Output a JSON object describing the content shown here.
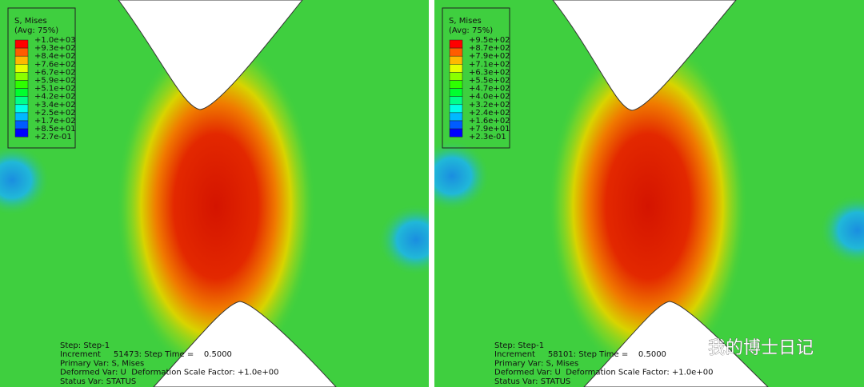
{
  "panels": [
    {
      "legend": {
        "title": "S, Mises",
        "subtitle": "(Avg: 75%)",
        "labels": [
          "+1.0e+03",
          "+9.3e+02",
          "+8.4e+02",
          "+7.6e+02",
          "+6.7e+02",
          "+5.9e+02",
          "+5.1e+02",
          "+4.2e+02",
          "+3.4e+02",
          "+2.5e+02",
          "+1.7e+02",
          "+8.5e+01",
          "+2.7e-01"
        ]
      },
      "status": [
        "Step: Step-1",
        "Increment     51473: Step Time =    0.5000",
        "Primary Var: S, Mises",
        "Deformed Var: U  Deformation Scale Factor: +1.0e+00",
        "Status Var: STATUS"
      ]
    },
    {
      "legend": {
        "title": "S, Mises",
        "subtitle": "(Avg: 75%)",
        "labels": [
          "+9.5e+02",
          "+8.7e+02",
          "+7.9e+02",
          "+7.1e+02",
          "+6.3e+02",
          "+5.5e+02",
          "+4.7e+02",
          "+4.0e+02",
          "+3.2e+02",
          "+2.4e+02",
          "+1.6e+02",
          "+7.9e+01",
          "+2.3e-01"
        ]
      },
      "status": [
        "Step: Step-1",
        "Increment     58101: Step Time =    0.5000",
        "Primary Var: S, Mises",
        "Deformed Var: U  Deformation Scale Factor: +1.0e+00",
        "Status Var: STATUS"
      ]
    }
  ],
  "watermark": "我的博士日记"
}
